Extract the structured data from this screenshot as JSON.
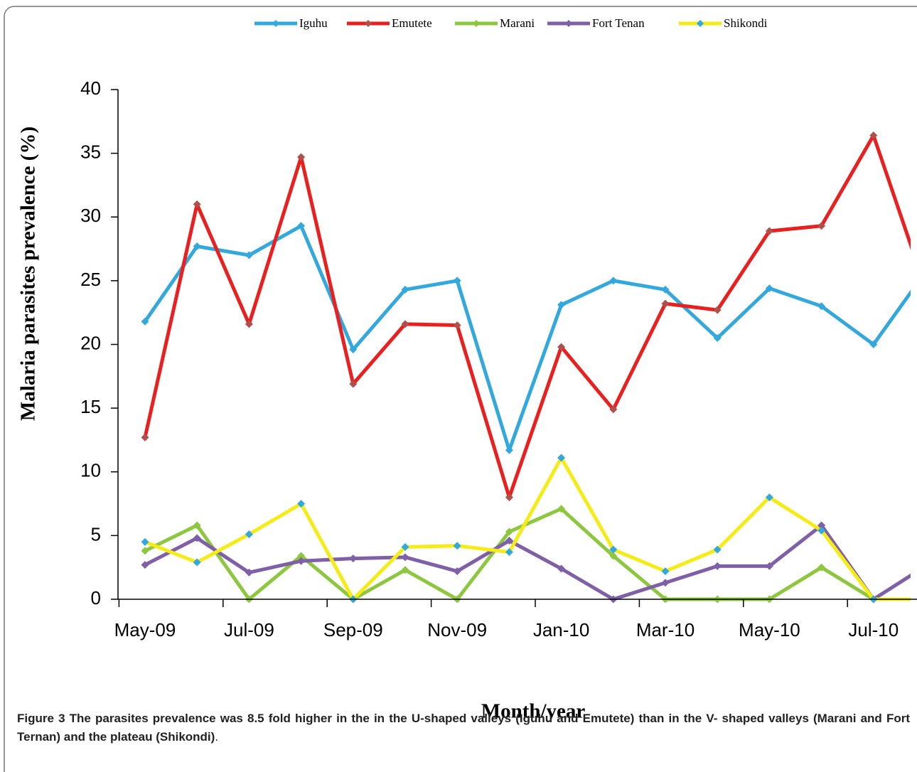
{
  "chart_data": {
    "type": "line",
    "y_label": "Malaria parasites prevalence (%)",
    "x_label": "Month/year",
    "categories": [
      "May-09",
      null,
      "Jul-09",
      null,
      "Sep-09",
      null,
      "Nov-09",
      null,
      "Jan-10",
      null,
      "Mar-10",
      null,
      "May-10",
      null,
      "Jul-10",
      null
    ],
    "ylim": [
      0,
      40
    ],
    "yticks": [
      0,
      5,
      10,
      15,
      20,
      25,
      30,
      35,
      40
    ],
    "legend": "top",
    "series": [
      {
        "name": "Iguhu",
        "color": "#33a8dd",
        "marker_color": "#33a8dd",
        "values": [
          21.8,
          27.7,
          27.0,
          29.3,
          19.6,
          24.3,
          25.0,
          11.7,
          23.1,
          25.0,
          24.3,
          20.5,
          24.4,
          23.0,
          20.0,
          25.7
        ]
      },
      {
        "name": "Emutete",
        "color": "#e8201f",
        "marker_color": "#b0504a",
        "values": [
          12.7,
          31.0,
          21.6,
          34.7,
          16.9,
          21.6,
          21.5,
          8.0,
          19.8,
          14.9,
          23.2,
          22.7,
          28.9,
          29.3,
          36.4,
          24.4
        ]
      },
      {
        "name": "Marani",
        "color": "#8dc63f",
        "marker_color": "#8dc63f",
        "values": [
          3.8,
          5.8,
          0,
          3.4,
          0,
          2.3,
          0,
          5.3,
          7.1,
          3.4,
          0,
          0,
          0,
          2.5,
          0,
          0
        ]
      },
      {
        "name": "Fort Tenan",
        "color": "#7f5fa6",
        "marker_color": "#7f5fa6",
        "values": [
          2.7,
          4.8,
          2.1,
          3.0,
          3.2,
          3.3,
          2.2,
          4.6,
          2.4,
          0,
          1.3,
          2.6,
          2.6,
          5.8,
          0,
          2.6
        ]
      },
      {
        "name": "Shikondi",
        "color": "#f5eb16",
        "marker_color": "#33a8dd",
        "values": [
          4.5,
          2.9,
          5.1,
          7.5,
          0,
          4.1,
          4.2,
          3.7,
          11.1,
          3.9,
          2.2,
          3.9,
          8.0,
          5.4,
          0,
          0
        ]
      }
    ]
  },
  "caption": {
    "label": "Figure 3",
    "text": "The parasites prevalence was 8.5 fold higher in the in the U-shaped valleys (Iguhu and Emutete) than in the V- shaped valleys (Marani and Fort Ternan) and the plateau (Shikondi)",
    "end": "."
  }
}
